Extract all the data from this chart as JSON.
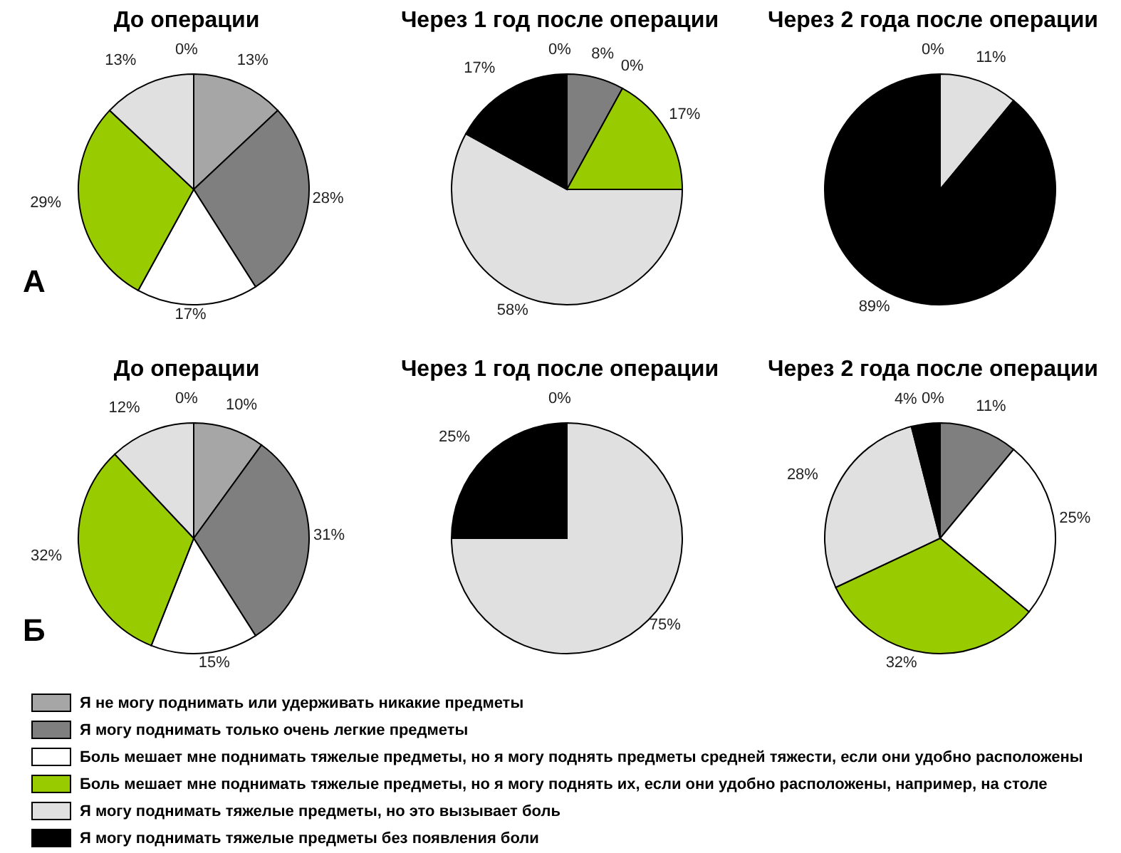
{
  "chart_data": [
    {
      "type": "pie",
      "title": "До операции",
      "annotations": [
        "А"
      ],
      "legend": "bottom",
      "categories": [
        "Я не могу поднимать или удерживать никакие предметы",
        "Я могу поднимать только очень легкие предметы",
        "Боль мешает мне поднимать тяжелые предметы, но я могу поднять предметы средней тяжести, если они удобно расположены",
        "Боль мешает мне поднимать тяжелые предметы, но я могу поднять их, если они удобно расположены, например, на столе",
        "Я могу поднимать тяжелые предметы, но это вызывает боль",
        "Я могу поднимать тяжелые предметы без появления боли"
      ],
      "values": [
        13,
        28,
        17,
        29,
        13,
        0
      ],
      "value_labels": [
        "13%",
        "28%",
        "17%",
        "29%",
        "13%",
        "0%"
      ],
      "colors": [
        "#a6a6a6",
        "#7f7f7f",
        "#ffffff",
        "#99cc00",
        "#e0e0e0",
        "#000000"
      ]
    },
    {
      "type": "pie",
      "title": "Через 1 год после операции",
      "categories": [
        null,
        null,
        null,
        null,
        null,
        null
      ],
      "values": [
        0,
        8,
        0,
        17,
        58,
        17
      ],
      "value_labels": [
        "0%",
        "8%",
        "0%",
        "17%",
        "58%",
        "17%"
      ],
      "colors": [
        "#a6a6a6",
        "#7f7f7f",
        "#ffffff",
        "#99cc00",
        "#e0e0e0",
        "#000000"
      ]
    },
    {
      "type": "pie",
      "title": "Через 2 года после операции",
      "categories": [
        null,
        null,
        null,
        null,
        null,
        null
      ],
      "values": [
        0,
        0,
        0,
        0,
        11,
        89
      ],
      "value_labels": [
        "0%",
        null,
        null,
        null,
        "11%",
        "89%"
      ],
      "colors": [
        "#a6a6a6",
        "#7f7f7f",
        "#ffffff",
        "#99cc00",
        "#e0e0e0",
        "#000000"
      ]
    },
    {
      "type": "pie",
      "title": "До операции",
      "annotations": [
        "Б"
      ],
      "categories": [
        null,
        null,
        null,
        null,
        null,
        null
      ],
      "values": [
        10,
        31,
        15,
        32,
        12,
        0
      ],
      "value_labels": [
        "10%",
        "31%",
        "15%",
        "32%",
        "12%",
        "0%"
      ],
      "colors": [
        "#a6a6a6",
        "#7f7f7f",
        "#ffffff",
        "#99cc00",
        "#e0e0e0",
        "#000000"
      ]
    },
    {
      "type": "pie",
      "title": "Через 1 год после операции",
      "categories": [
        null,
        null,
        null,
        null,
        null,
        null
      ],
      "values": [
        0,
        0,
        0,
        0,
        75,
        25
      ],
      "value_labels": [
        "0%",
        null,
        null,
        null,
        "75%",
        "25%"
      ],
      "colors": [
        "#a6a6a6",
        "#7f7f7f",
        "#ffffff",
        "#99cc00",
        "#e0e0e0",
        "#000000"
      ]
    },
    {
      "type": "pie",
      "title": "Через 2 года после операции",
      "categories": [
        null,
        null,
        null,
        null,
        null,
        null
      ],
      "values": [
        0,
        11,
        25,
        32,
        28,
        4
      ],
      "value_labels": [
        "0%",
        "11%",
        "25%",
        "32%",
        "28%",
        "4%"
      ],
      "colors": [
        "#a6a6a6",
        "#7f7f7f",
        "#ffffff",
        "#99cc00",
        "#e0e0e0",
        "#000000"
      ]
    }
  ]
}
